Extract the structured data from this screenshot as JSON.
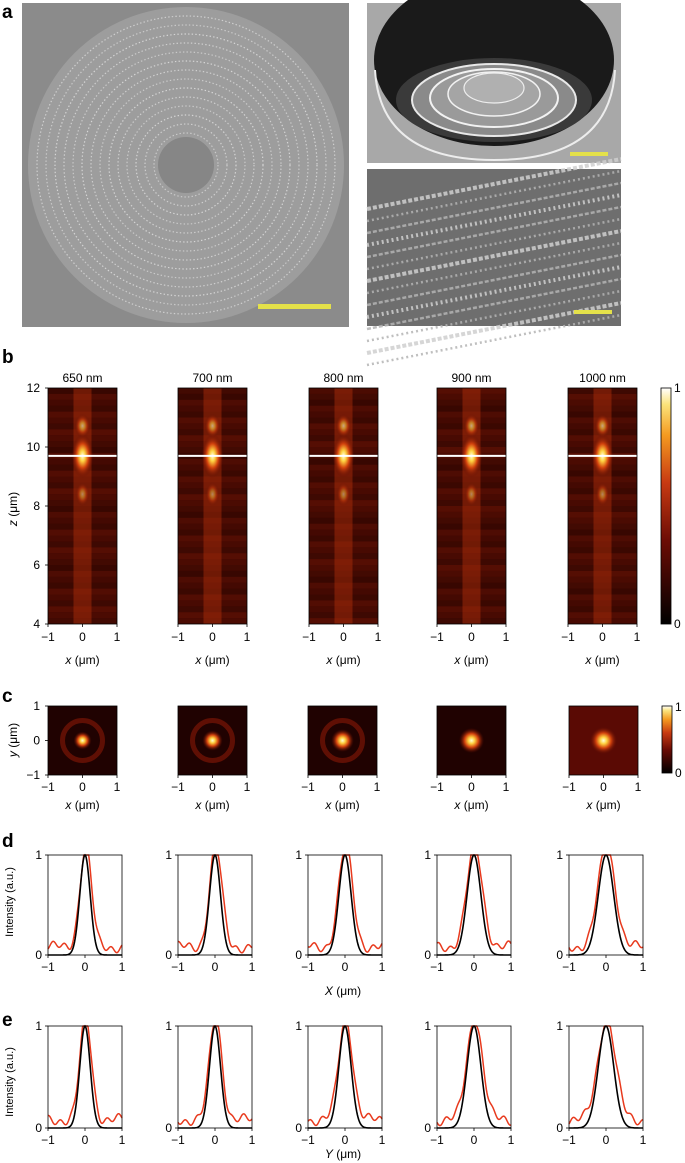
{
  "figure": {
    "panel_labels": {
      "a": "a",
      "b": "b",
      "c": "c",
      "d": "d",
      "e": "e"
    },
    "wavelengths": [
      "650 nm",
      "700 nm",
      "800 nm",
      "900 nm",
      "1000 nm"
    ],
    "colors": {
      "scale_bar": "#e4e14a",
      "measured": "#e83a1e",
      "theory": "#000000",
      "focal_line": "#ffffff"
    }
  },
  "chart_data": [
    {
      "panel": "b",
      "type": "heatmap",
      "xlabel": "x (μm)",
      "ylabel": "z (μm)",
      "xlim": [
        -1,
        1
      ],
      "ylim": [
        4,
        12
      ],
      "x_ticks": [
        "−1",
        "0",
        "1"
      ],
      "y_ticks": [
        "4",
        "6",
        "8",
        "10",
        "12"
      ],
      "focal_plane_z": 9.7,
      "colorbar": {
        "min": 0,
        "max": 1,
        "tick_labels": [
          "0",
          "1"
        ]
      }
    },
    {
      "panel": "c",
      "type": "heatmap",
      "xlabel": "x (μm)",
      "ylabel": "y (μm)",
      "xlim": [
        -1,
        1
      ],
      "ylim": [
        -1,
        1
      ],
      "x_ticks": [
        "−1",
        "0",
        "1"
      ],
      "y_ticks": [
        "−1",
        "0",
        "1"
      ],
      "colorbar": {
        "min": 0,
        "max": 1,
        "tick_labels": [
          "0",
          "1"
        ]
      }
    },
    {
      "panel": "d",
      "type": "line",
      "xlabel": "X (μm)",
      "ylabel": "Intensity (a.u.)",
      "xlim": [
        -1,
        1
      ],
      "ylim": [
        0,
        1
      ],
      "x_ticks": [
        "−1",
        "0",
        "1"
      ],
      "y_ticks": [
        "0",
        "1"
      ],
      "fwhm": [
        0.33,
        0.35,
        0.39,
        0.44,
        0.49
      ]
    },
    {
      "panel": "e",
      "type": "line",
      "xlabel": "Y (μm)",
      "ylabel": "Intensity (a.u.)",
      "xlim": [
        -1,
        1
      ],
      "ylim": [
        0,
        1
      ],
      "x_ticks": [
        "−1",
        "0",
        "1"
      ],
      "y_ticks": [
        "0",
        "1"
      ],
      "fwhm": [
        0.33,
        0.35,
        0.39,
        0.44,
        0.49
      ]
    }
  ]
}
